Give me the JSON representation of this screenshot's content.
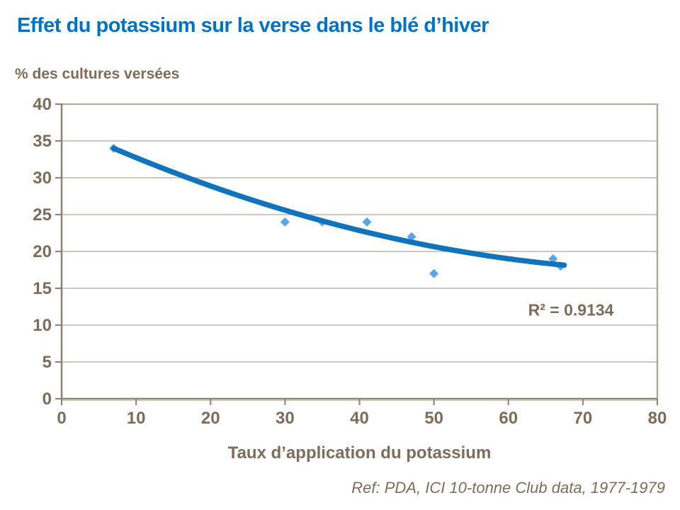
{
  "title": {
    "text": "Effet du potassium sur la verse dans le blé d’hiver",
    "color": "#0072C6"
  },
  "y_axis_caption": "% des cultures versées",
  "footer": {
    "ref_text": "Ref: PDA, ICI 10-tonne Club data, 1977-1979"
  },
  "chart_data": {
    "type": "scatter",
    "title": "Effet du potassium sur la verse dans le blé d’hiver",
    "xlabel": "Taux d’application du potassium",
    "ylabel": "% des cultures versées",
    "xlim": [
      0,
      80
    ],
    "ylim": [
      0,
      40
    ],
    "x_ticks": [
      0,
      10,
      20,
      30,
      40,
      50,
      60,
      70,
      80
    ],
    "y_ticks": [
      0,
      5,
      10,
      15,
      20,
      25,
      30,
      35,
      40
    ],
    "grid": "horizontal",
    "legend": "none",
    "points": [
      [
        7,
        34
      ],
      [
        30,
        24
      ],
      [
        35,
        24
      ],
      [
        41,
        24
      ],
      [
        47,
        22
      ],
      [
        50,
        17
      ],
      [
        66,
        19
      ],
      [
        67,
        18
      ]
    ],
    "trendline": {
      "kind": "polynomial",
      "coefficients": {
        "a": 0.00275,
        "b": -0.467,
        "c": 37.13
      },
      "x_start": 7,
      "x_end": 67.5,
      "annotation": "R² = 0.9134",
      "annotation_xy": [
        68.4,
        11.3
      ]
    },
    "colors": {
      "marker": "#5BA5E7",
      "trendline": "#1173BB",
      "axis": "#8E8070",
      "axis_shadow": "#C9BEAD",
      "grid": "#B4A796",
      "text": "#7D6C59"
    }
  }
}
